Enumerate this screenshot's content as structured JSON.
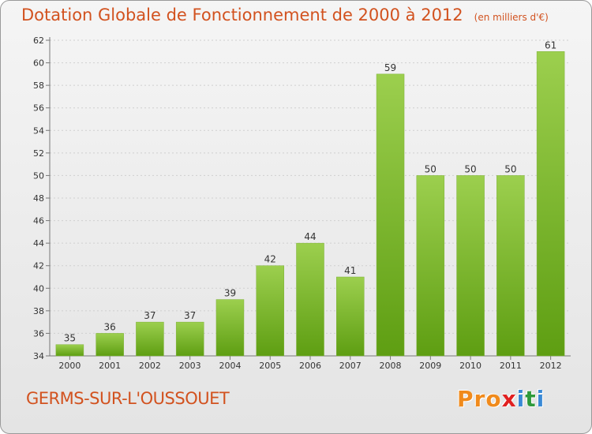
{
  "header": {
    "title": "Dotation Globale de Fonctionnement de 2000 à 2012",
    "unit_note": "(en milliers d'€)"
  },
  "footer": {
    "commune": "GERMS-SUR-L'OUSSOUET",
    "logo_letters": [
      "P",
      "r",
      "o",
      "x",
      "i",
      "t",
      "i"
    ]
  },
  "colors": {
    "bar_top": "#9ccf4e",
    "bar_bottom": "#5e9e12",
    "title": "#d2521f",
    "logo": [
      "#f08a1c",
      "#f08a1c",
      "#f08a1c",
      "#e02020",
      "#3a8ad6",
      "#2f9a3c",
      "#3a8ad6"
    ]
  },
  "chart_data": {
    "type": "bar",
    "categories": [
      "2000",
      "2001",
      "2002",
      "2003",
      "2004",
      "2005",
      "2006",
      "2007",
      "2008",
      "2009",
      "2010",
      "2011",
      "2012"
    ],
    "values": [
      35,
      36,
      37,
      37,
      39,
      42,
      44,
      41,
      59,
      50,
      50,
      50,
      61
    ],
    "value_labels": [
      "35",
      "36",
      "37",
      "37",
      "39",
      "42",
      "44",
      "41",
      "59",
      "50",
      "50",
      "50",
      "61"
    ],
    "title": "Dotation Globale de Fonctionnement de 2000 à 2012",
    "ylabel": "",
    "xlabel": "",
    "ylim": [
      34,
      62
    ],
    "yticks": [
      "34",
      "36",
      "38",
      "40",
      "42",
      "44",
      "46",
      "48",
      "50",
      "52",
      "54",
      "56",
      "58",
      "60",
      "62"
    ],
    "grid": true
  }
}
